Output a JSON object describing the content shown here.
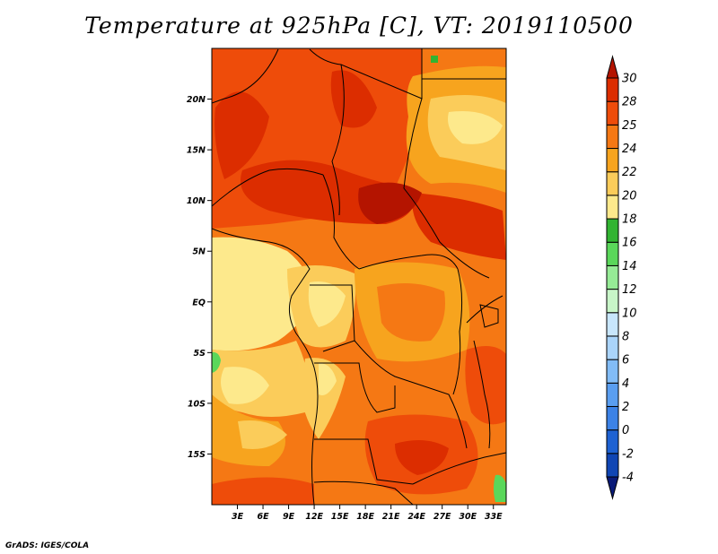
{
  "title": "Temperature at 925hPa [C], VT: 2019110500",
  "credit": "GrADS: IGES/COLA",
  "map": {
    "lon_range": [
      0,
      34.5
    ],
    "lat_range": [
      -20,
      25
    ],
    "x_ticks": [
      {
        "lon": 3,
        "label": "3E"
      },
      {
        "lon": 6,
        "label": "6E"
      },
      {
        "lon": 9,
        "label": "9E"
      },
      {
        "lon": 12,
        "label": "12E"
      },
      {
        "lon": 15,
        "label": "15E"
      },
      {
        "lon": 18,
        "label": "18E"
      },
      {
        "lon": 21,
        "label": "21E"
      },
      {
        "lon": 24,
        "label": "24E"
      },
      {
        "lon": 27,
        "label": "27E"
      },
      {
        "lon": 30,
        "label": "30E"
      },
      {
        "lon": 33,
        "label": "33E"
      }
    ],
    "y_ticks": [
      {
        "lat": 20,
        "label": "20N"
      },
      {
        "lat": 15,
        "label": "15N"
      },
      {
        "lat": 10,
        "label": "10N"
      },
      {
        "lat": 5,
        "label": "5N"
      },
      {
        "lat": 0,
        "label": "EQ"
      },
      {
        "lat": -5,
        "label": "5S"
      },
      {
        "lat": -10,
        "label": "10S"
      },
      {
        "lat": -15,
        "label": "15S"
      }
    ]
  },
  "colorbar": {
    "levels": [
      "-4",
      "-2",
      "0",
      "2",
      "4",
      "6",
      "8",
      "10",
      "12",
      "14",
      "16",
      "18",
      "20",
      "22",
      "24",
      "25",
      "28",
      "30"
    ],
    "colors": [
      "#0a1a78",
      "#1046b4",
      "#1e62d2",
      "#3c82e6",
      "#5a9ef0",
      "#82bcf6",
      "#aad4fa",
      "#c8e6fc",
      "#c8f5c8",
      "#96eb96",
      "#5ad75a",
      "#32b432",
      "#fde98c",
      "#fbcc5a",
      "#f7a41e",
      "#f57814",
      "#ee4c0a",
      "#dc2d00",
      "#b41400"
    ]
  }
}
